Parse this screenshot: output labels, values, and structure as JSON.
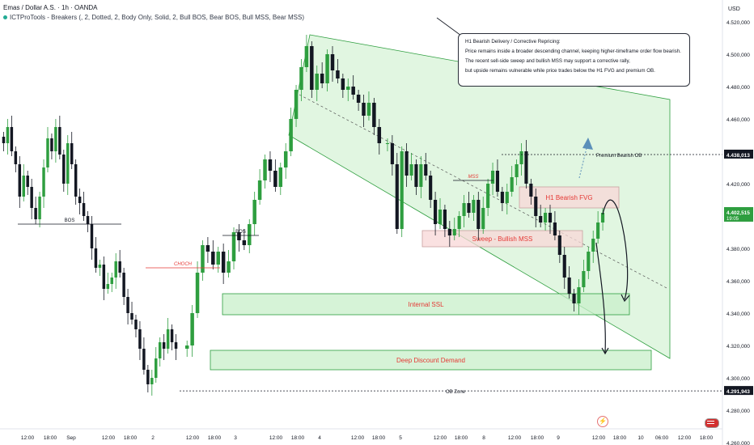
{
  "header": {
    "title": "Emas / Dollar A.S. · 1h · OANDA",
    "indicator": "ICTProTools - Breakers (, 2, Dotted, 2, Body Only, Solid, 2, Bull BOS, Bear BOS, Bull MSS, Bear MSS)"
  },
  "note": {
    "lines": [
      "H1 Bearish Delivery / Corrective Repricing:",
      "Price remains inside a broader descending channel, keeping higher-timeframe order flow bearish.",
      "The recent sell-side sweep and bullish MSS may support a corrective rally,",
      "but upside remains vulnerable while price trades below the H1 FVG and premium OB."
    ]
  },
  "colors": {
    "bull": "#2e9e3f",
    "bear": "#131722",
    "channel": "#2e9e3f",
    "zone_green": "#c8efc9",
    "zone_red": "#f8d7d7",
    "label_red": "#e53935",
    "axis_text": "#131722"
  },
  "chart_data": {
    "type": "candlestick",
    "symbol": "Emas / Dollar A.S.",
    "timeframe": "1h",
    "y_axis_unit": "USD",
    "ylim": [
      4255,
      4530
    ],
    "y_ticks": [
      4260,
      4280,
      4300,
      4320,
      4340,
      4360,
      4380,
      4400,
      4420,
      4440,
      4460,
      4480,
      4500,
      4520
    ],
    "y_tick_labels": [
      "4.260,000",
      "4.280,000",
      "4.300,000",
      "4.320,000",
      "4.340,000",
      "4.360,000",
      "4.380,000",
      "4.400,000",
      "4.420,000",
      "4.440,000",
      "4.460,000",
      "4.480,000",
      "4.500,000",
      "4.520,000"
    ],
    "x_tick_labels": [
      "12:00",
      "18:00",
      "Sep",
      "12:00",
      "18:00",
      "2",
      "12:00",
      "18:00",
      "3",
      "12:00",
      "18:00",
      "4",
      "12:00",
      "18:00",
      "5",
      "12:00",
      "18:00",
      "8",
      "12:00",
      "18:00",
      "9",
      "12:00",
      "18:00",
      "10",
      "06:00",
      "12:00",
      "18:00"
    ],
    "price_labels": [
      {
        "value": 4438.013,
        "text": "4.438,013",
        "color": "#131722"
      },
      {
        "value": 4402.515,
        "text": "4.402,515",
        "sub": "19:05",
        "color": "#2e9e3f"
      },
      {
        "value": 4291.943,
        "text": "4.291,943",
        "color": "#131722"
      }
    ],
    "segment_closes": [
      [
        4445,
        4455,
        4440,
        4432,
        4412,
        4425,
        4418,
        4405,
        4398,
        4412,
        4430,
        4448,
        4440,
        4455,
        4438,
        4420,
        4445,
        4432,
        4412,
        4408,
        4400,
        4395,
        4380,
        4368,
        4370,
        4355,
        4358,
        4362,
        4372,
        4365,
        4350,
        4340,
        4336,
        4330,
        4318,
        4305,
        4296,
        4300,
        4312,
        4322,
        4318,
        4330,
        4322,
        4318
      ],
      [
        4320,
        4340,
        4365,
        4382,
        4378,
        4370,
        4378,
        4365,
        4372,
        4390,
        4385,
        4382,
        4395,
        4410,
        4422,
        4435,
        4428,
        4418,
        4430,
        4440,
        4460,
        4478,
        4492,
        4505,
        4478,
        4488,
        4482,
        4500,
        4490,
        4485,
        4478,
        4480,
        4475,
        4470,
        4462,
        4470,
        4455,
        4445
      ],
      [
        4445,
        4432,
        4392,
        4440,
        4425,
        4432,
        4418,
        4432,
        4425,
        4410,
        4395,
        4404,
        4392,
        4388,
        4392,
        4400,
        4408,
        4402,
        4410,
        4392,
        4405,
        4420,
        4428,
        4415,
        4408,
        4415,
        4424,
        4432,
        4440,
        4420,
        4412,
        4400,
        4396,
        4402,
        4396,
        4388,
        4376,
        4362,
        4352,
        4346,
        4356,
        4366,
        4378,
        4386,
        4396,
        4402
      ]
    ],
    "levels": [
      {
        "label": "BOS",
        "value": 4395
      },
      {
        "label": "BOS",
        "value": 4388
      },
      {
        "label": "CHOCH",
        "value": 4368
      },
      {
        "label": "MSS",
        "value": 4422
      },
      {
        "label": "Premium Bearish OB",
        "value": 4438.013
      },
      {
        "label": "OB Zone",
        "value": 4291.943
      }
    ],
    "zones": [
      {
        "label": "H1 Bearish FVG",
        "from": 4405,
        "to": 4418
      },
      {
        "label": "Sweep - Bullish MSS",
        "from": 4381,
        "to": 4391
      },
      {
        "label": "Internal SSL",
        "from": 4339,
        "to": 4352
      },
      {
        "label": "Deep Discount Demand",
        "from": 4305,
        "to": 4317
      }
    ]
  }
}
